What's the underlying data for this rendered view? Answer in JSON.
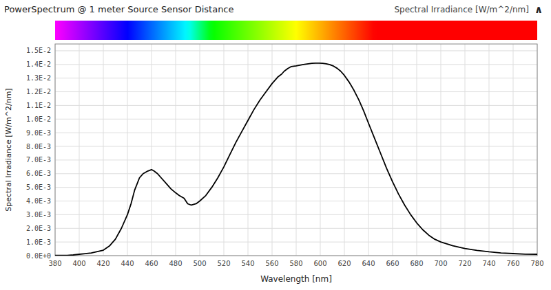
{
  "chart_data": {
    "type": "line",
    "title": "PowerSpectrum @ 1 meter Source Sensor Distance",
    "subtitle": "Spectral Irradiance [W/m^2/nm]",
    "annotations": [
      "∧"
    ],
    "xlabel": "Wavelength [nm]",
    "ylabel": "Spectral Irradiance [W/m^2/nm]",
    "xlim": [
      380,
      780
    ],
    "ylim": [
      0.0,
      0.0155
    ],
    "xticks": [
      380,
      400,
      420,
      440,
      460,
      480,
      500,
      520,
      540,
      560,
      580,
      600,
      620,
      640,
      660,
      680,
      700,
      720,
      740,
      760,
      780
    ],
    "yticks": [
      {
        "value": 0.0,
        "label": "0.0E+0"
      },
      {
        "value": 0.001,
        "label": "1.0E-3"
      },
      {
        "value": 0.002,
        "label": "2.0E-3"
      },
      {
        "value": 0.003,
        "label": "3.0E-3"
      },
      {
        "value": 0.004,
        "label": "4.0E-3"
      },
      {
        "value": 0.005,
        "label": "5.0E-3"
      },
      {
        "value": 0.006,
        "label": "6.0E-3"
      },
      {
        "value": 0.007,
        "label": "7.0E-3"
      },
      {
        "value": 0.008,
        "label": "8.0E-3"
      },
      {
        "value": 0.009,
        "label": "9.0E-3"
      },
      {
        "value": 0.01,
        "label": "1.0E-2"
      },
      {
        "value": 0.011,
        "label": "1.1E-2"
      },
      {
        "value": 0.012,
        "label": "1.2E-2"
      },
      {
        "value": 0.013,
        "label": "1.3E-2"
      },
      {
        "value": 0.014,
        "label": "1.4E-2"
      },
      {
        "value": 0.015,
        "label": "1.5E-2"
      }
    ],
    "grid": true,
    "color": "#000000",
    "x": [
      380,
      383,
      386,
      390,
      395,
      400,
      405,
      410,
      415,
      420,
      425,
      430,
      435,
      440,
      443,
      446,
      450,
      453,
      457,
      460,
      462,
      465,
      468,
      472,
      476,
      480,
      483,
      487,
      490,
      493,
      497,
      500,
      505,
      510,
      515,
      520,
      525,
      530,
      535,
      540,
      545,
      550,
      555,
      560,
      565,
      568,
      570,
      573,
      576,
      580,
      583,
      586,
      590,
      593,
      596,
      599,
      602,
      605,
      608,
      611,
      614,
      617,
      620,
      624,
      628,
      632,
      636,
      640,
      645,
      650,
      655,
      660,
      665,
      670,
      675,
      680,
      685,
      690,
      695,
      700,
      710,
      720,
      730,
      740,
      750,
      760,
      770,
      780
    ],
    "values": [
      2e-05,
      2e-05,
      2e-05,
      2e-05,
      5e-05,
      0.0001,
      0.00015,
      0.0002,
      0.0003,
      0.0004,
      0.0007,
      0.0012,
      0.002,
      0.003,
      0.0038,
      0.0048,
      0.0057,
      0.006,
      0.0062,
      0.0063,
      0.0062,
      0.006,
      0.0057,
      0.0053,
      0.0049,
      0.0046,
      0.0044,
      0.0042,
      0.0038,
      0.0037,
      0.0038,
      0.004,
      0.0044,
      0.005,
      0.0057,
      0.0065,
      0.0074,
      0.0083,
      0.0091,
      0.0099,
      0.0107,
      0.0114,
      0.012,
      0.0126,
      0.0131,
      0.0133,
      0.0135,
      0.0137,
      0.01385,
      0.0139,
      0.01395,
      0.014,
      0.01405,
      0.01408,
      0.0141,
      0.0141,
      0.01408,
      0.01405,
      0.01398,
      0.01388,
      0.01372,
      0.0135,
      0.0132,
      0.0127,
      0.0121,
      0.0114,
      0.0106,
      0.0097,
      0.0086,
      0.0075,
      0.0064,
      0.0054,
      0.0045,
      0.0037,
      0.003,
      0.0024,
      0.0019,
      0.0015,
      0.0012,
      0.001,
      0.00072,
      0.00052,
      0.00038,
      0.00028,
      0.0002,
      0.00015,
      0.00011,
      0.0001
    ]
  }
}
